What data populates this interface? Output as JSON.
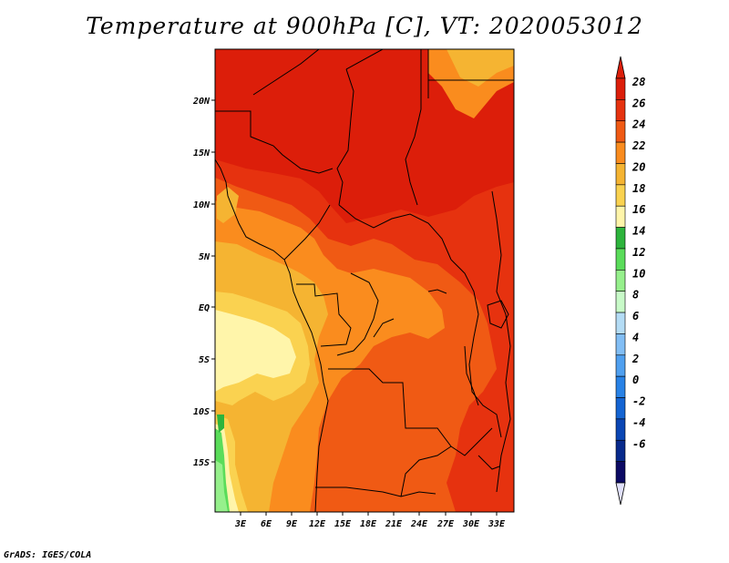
{
  "title": "Temperature at 900hPa [C], VT: 2020053012",
  "credit": "GrADS: IGES/COLA",
  "map": {
    "variable": "Temperature at 900hPa",
    "units": "C",
    "lat_labels": [
      "20N",
      "15N",
      "10N",
      "5N",
      "EQ",
      "5S",
      "10S",
      "15S"
    ],
    "lon_labels": [
      "3E",
      "6E",
      "9E",
      "12E",
      "15E",
      "18E",
      "21E",
      "24E",
      "27E",
      "30E",
      "33E"
    ]
  },
  "colorbar": {
    "levels": [
      "28",
      "26",
      "24",
      "22",
      "20",
      "18",
      "16",
      "14",
      "12",
      "10",
      "8",
      "6",
      "4",
      "2",
      "0",
      "-2",
      "-4",
      "-6"
    ],
    "colors": [
      "#dc1e0a",
      "#e6320f",
      "#f05a14",
      "#fa8c1e",
      "#f5b432",
      "#fad250",
      "#fff5aa",
      "#2db43c",
      "#5adc5a",
      "#96f08c",
      "#c8fac8",
      "#b4dcf5",
      "#82bef5",
      "#50a0f0",
      "#2882e6",
      "#1464d2",
      "#0a46b4",
      "#082a8c",
      "#0c0a64"
    ],
    "top_color": "#dc1e0a",
    "bottom_color": "#e0e0fa"
  }
}
